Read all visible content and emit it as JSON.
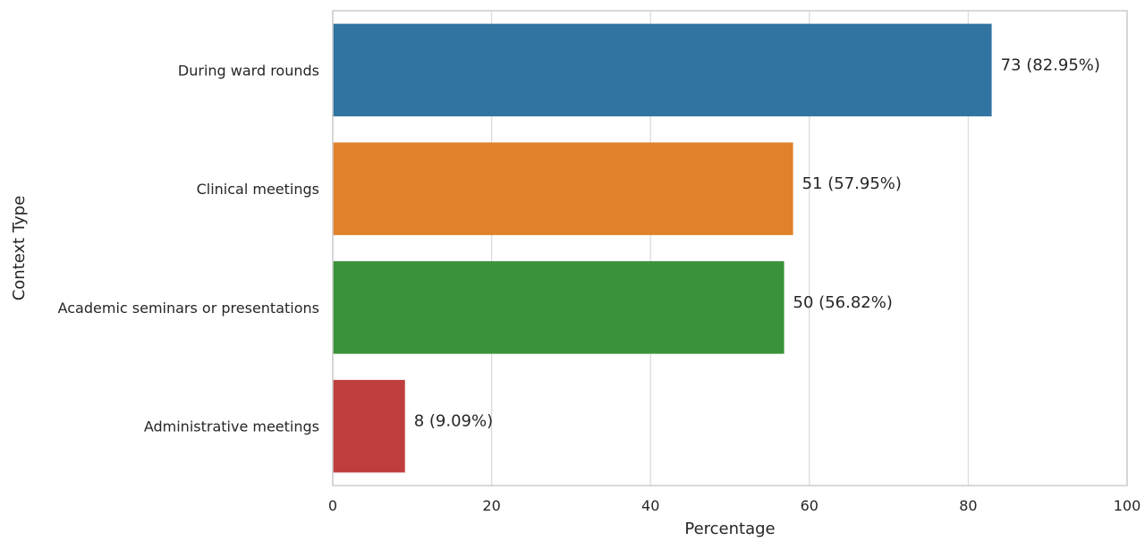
{
  "chart_data": {
    "type": "bar",
    "orientation": "horizontal",
    "categories": [
      "During ward rounds",
      "Clinical meetings",
      "Academic seminars or presentations",
      "Administrative meetings"
    ],
    "values": [
      82.95,
      57.95,
      56.82,
      9.09
    ],
    "counts": [
      73,
      51,
      50,
      8
    ],
    "data_labels": [
      "73 (82.95%)",
      "51 (57.95%)",
      "50 (56.82%)",
      "8 (9.09%)"
    ],
    "colors": [
      "#3274a1",
      "#e1812c",
      "#3a923a",
      "#c03d3e"
    ],
    "xlabel": "Percentage",
    "ylabel": "Context Type",
    "xlim": [
      0,
      100
    ],
    "xticks": [
      0,
      20,
      40,
      60,
      80,
      100
    ],
    "grid": true
  }
}
